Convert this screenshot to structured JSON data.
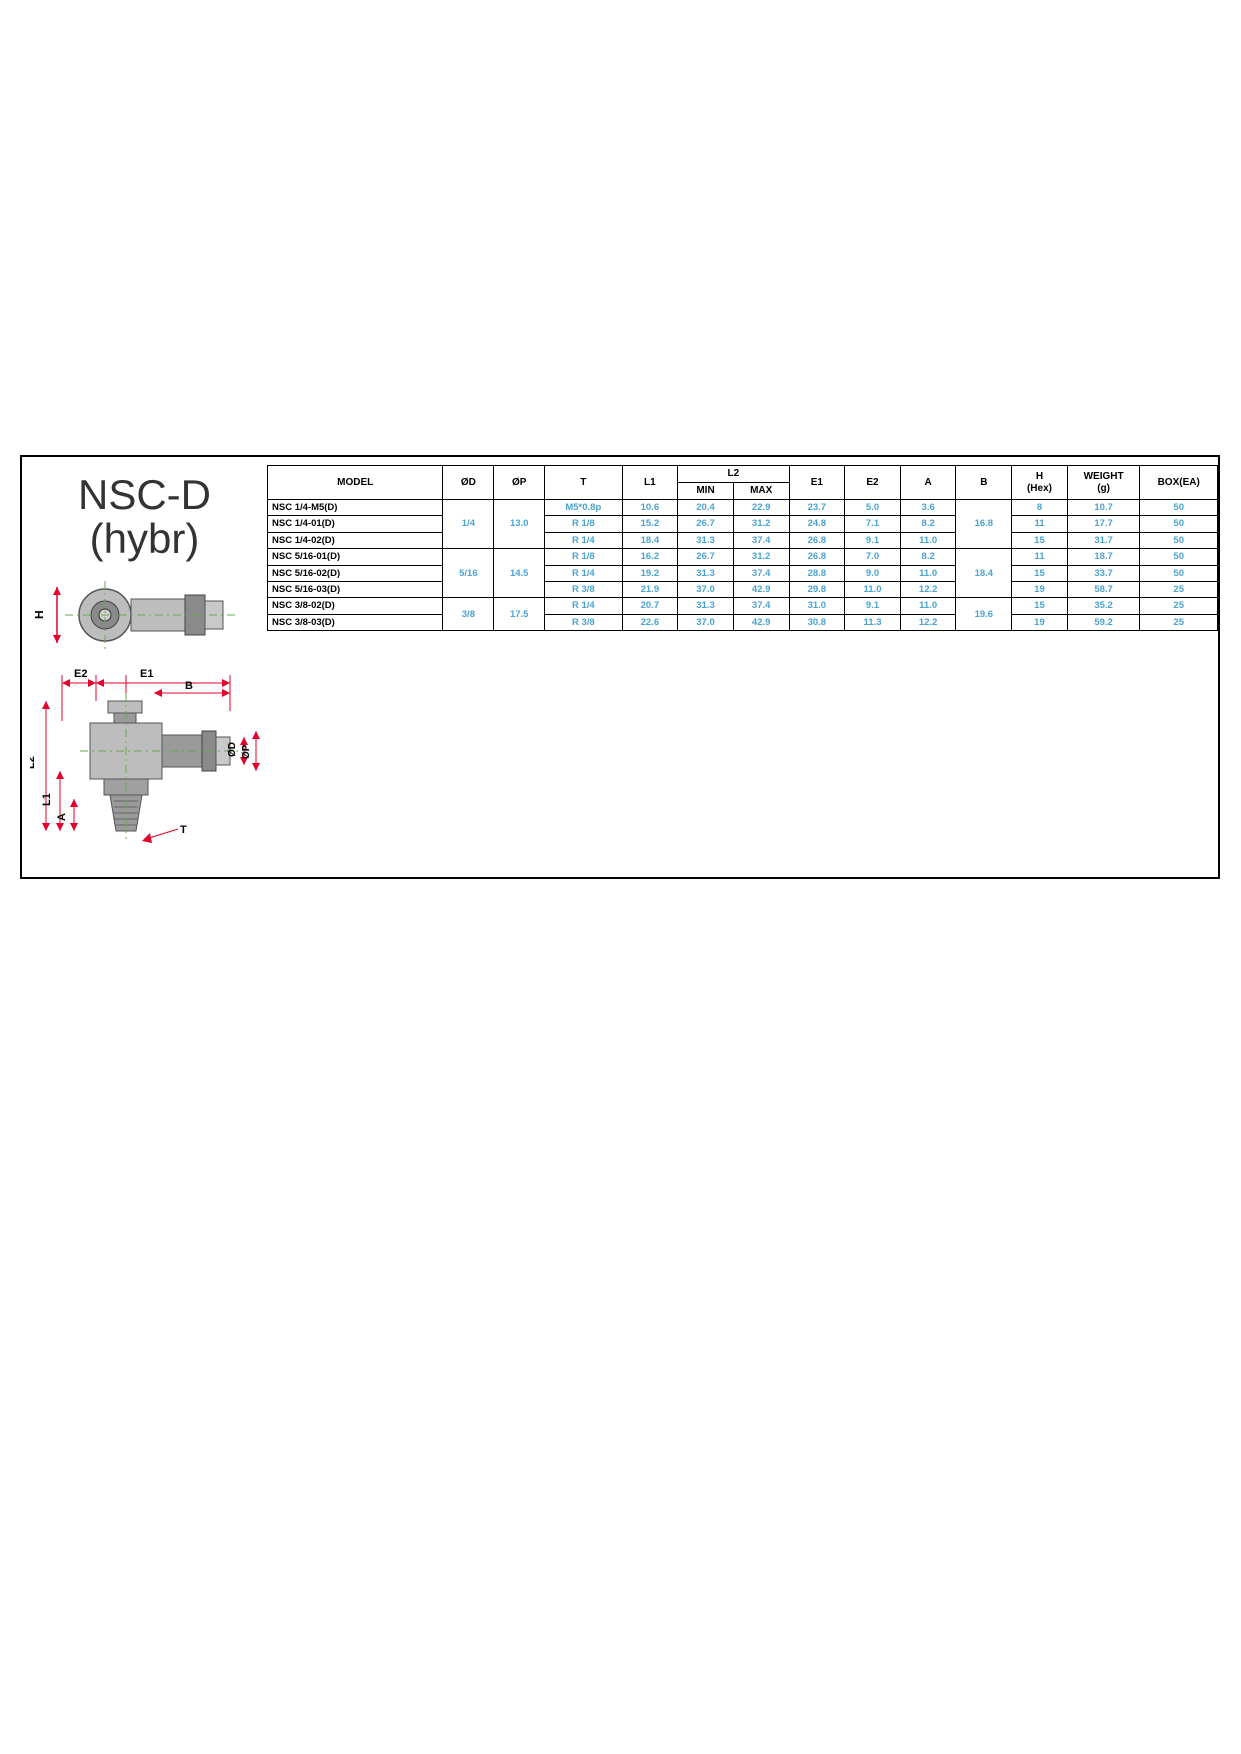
{
  "title_line1": "NSC-D",
  "title_line2": "(hybr)",
  "colors": {
    "value_text": "#4aa3d0",
    "border": "#000000",
    "dim_red": "#e3002b",
    "center_green": "#69a84f",
    "metal_light": "#c9c9c9",
    "metal_dark": "#8a8a8a"
  },
  "diagram_top": {
    "H_label": "H"
  },
  "diagram_bottom": {
    "labels": {
      "E2": "E2",
      "E1": "E1",
      "B": "B",
      "L2": "L2",
      "L1": "L1",
      "A": "A",
      "T": "T",
      "OD": "ØD",
      "OP": "ØP"
    }
  },
  "table": {
    "columns": [
      "MODEL",
      "ØD",
      "ØP",
      "T",
      "L1",
      "L2_MIN",
      "L2_MAX",
      "E1",
      "E2",
      "A",
      "B",
      "H (Hex)",
      "WEIGHT (g)",
      "BOX(EA)"
    ],
    "header": {
      "model": "MODEL",
      "od": "ØD",
      "op": "ØP",
      "t": "T",
      "l1": "L1",
      "l2": "L2",
      "l2min": "MIN",
      "l2max": "MAX",
      "e1": "E1",
      "e2": "E2",
      "a": "A",
      "b": "B",
      "h": "H",
      "h2": "(Hex)",
      "w": "WEIGHT",
      "w2": "(g)",
      "box": "BOX(EA)"
    },
    "groups": [
      {
        "od": "1/4",
        "op": "13.0",
        "b": "16.8",
        "rows": [
          {
            "model": "NSC 1/4-M5(D)",
            "t": "M5*0.8p",
            "l1": "10.6",
            "l2min": "20.4",
            "l2max": "22.9",
            "e1": "23.7",
            "e2": "5.0",
            "a": "3.6",
            "h": "8",
            "w": "10.7",
            "box": "50"
          },
          {
            "model": "NSC 1/4-01(D)",
            "t": "R 1/8",
            "l1": "15.2",
            "l2min": "26.7",
            "l2max": "31.2",
            "e1": "24.8",
            "e2": "7.1",
            "a": "8.2",
            "h": "11",
            "w": "17.7",
            "box": "50"
          },
          {
            "model": "NSC 1/4-02(D)",
            "t": "R 1/4",
            "l1": "18.4",
            "l2min": "31.3",
            "l2max": "37.4",
            "e1": "26.8",
            "e2": "9.1",
            "a": "11.0",
            "h": "15",
            "w": "31.7",
            "box": "50"
          }
        ]
      },
      {
        "od": "5/16",
        "op": "14.5",
        "b": "18.4",
        "rows": [
          {
            "model": "NSC 5/16-01(D)",
            "t": "R 1/8",
            "l1": "16.2",
            "l2min": "26.7",
            "l2max": "31.2",
            "e1": "26.8",
            "e2": "7.0",
            "a": "8.2",
            "h": "11",
            "w": "18.7",
            "box": "50"
          },
          {
            "model": "NSC 5/16-02(D)",
            "t": "R 1/4",
            "l1": "19.2",
            "l2min": "31.3",
            "l2max": "37.4",
            "e1": "28.8",
            "e2": "9.0",
            "a": "11.0",
            "h": "15",
            "w": "33.7",
            "box": "50"
          },
          {
            "model": "NSC 5/16-03(D)",
            "t": "R 3/8",
            "l1": "21.9",
            "l2min": "37.0",
            "l2max": "42.9",
            "e1": "29.8",
            "e2": "11.0",
            "a": "12.2",
            "h": "19",
            "w": "58.7",
            "box": "25"
          }
        ]
      },
      {
        "od": "3/8",
        "op": "17.5",
        "b": "19.6",
        "rows": [
          {
            "model": "NSC 3/8-02(D)",
            "t": "R 1/4",
            "l1": "20.7",
            "l2min": "31.3",
            "l2max": "37.4",
            "e1": "31.0",
            "e2": "9.1",
            "a": "11.0",
            "h": "15",
            "w": "35.2",
            "box": "25"
          },
          {
            "model": "NSC 3/8-03(D)",
            "t": "R 3/8",
            "l1": "22.6",
            "l2min": "37.0",
            "l2max": "42.9",
            "e1": "30.8",
            "e2": "11.3",
            "a": "12.2",
            "h": "19",
            "w": "59.2",
            "box": "25"
          }
        ]
      }
    ]
  }
}
